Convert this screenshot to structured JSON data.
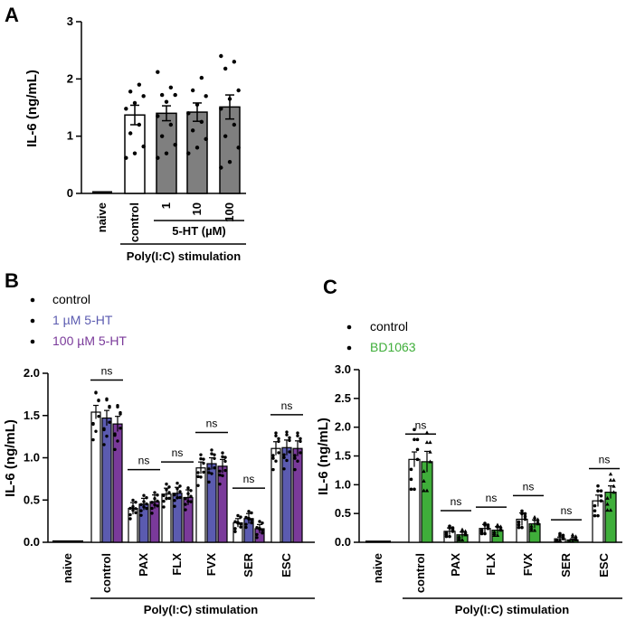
{
  "colors": {
    "control": "#ffffff",
    "dose1": "#5b5bb0",
    "dose100": "#7a3a9a",
    "bd1063": "#3fae3a",
    "panelA_treated": "#7f7f7f",
    "axis": "#000000"
  },
  "chart_data": [
    {
      "panel": "A",
      "type": "bar",
      "ylabel": "IL-6 (ng/mL)",
      "ylim": [
        0,
        3
      ],
      "yticks": [
        0,
        1,
        2,
        3
      ],
      "categories": [
        "naive",
        "control",
        "1",
        "10",
        "100"
      ],
      "values": [
        0.02,
        1.37,
        1.4,
        1.42,
        1.51
      ],
      "errors": [
        0.0,
        0.17,
        0.13,
        0.16,
        0.21
      ],
      "fills": [
        "white",
        "white",
        "gray",
        "gray",
        "gray"
      ],
      "points": [
        [
          0.02
        ],
        [
          0.62,
          0.7,
          0.82,
          1.05,
          1.2,
          1.48,
          1.58,
          1.7,
          1.78,
          1.9
        ],
        [
          0.62,
          0.7,
          0.85,
          1.0,
          1.2,
          1.35,
          1.6,
          1.72,
          1.72,
          1.85,
          2.12
        ],
        [
          0.7,
          0.8,
          0.95,
          1.1,
          1.25,
          1.4,
          1.55,
          1.7,
          1.8,
          2.02
        ],
        [
          0.45,
          0.55,
          0.8,
          1.0,
          1.2,
          1.48,
          1.65,
          1.8,
          2.18,
          2.3,
          2.4
        ]
      ],
      "group_label": "5-HT (µM)",
      "stim_label": "Poly(I:C) stimulation"
    },
    {
      "panel": "B",
      "type": "bar",
      "ylabel": "IL-6 (ng/mL)",
      "ylim": [
        0,
        2.0
      ],
      "yticks": [
        "0.0",
        "0.5",
        "1.0",
        "1.5",
        "2.0"
      ],
      "categories": [
        "naive",
        "control",
        "PAX",
        "FLX",
        "FVX",
        "SER",
        "ESC"
      ],
      "legend": [
        "control",
        "1 µM 5-HT",
        "100 µM 5-HT"
      ],
      "series": [
        {
          "name": "control",
          "values": [
            0.01,
            1.54,
            0.4,
            0.57,
            0.88,
            0.23,
            1.11
          ],
          "errors": [
            0,
            0.08,
            0.07,
            0.07,
            0.07,
            0.05,
            0.08
          ]
        },
        {
          "name": "1 µM 5-HT",
          "values": [
            0.01,
            1.47,
            0.45,
            0.58,
            0.93,
            0.28,
            1.12
          ],
          "errors": [
            0,
            0.09,
            0.07,
            0.07,
            0.07,
            0.06,
            0.09
          ]
        },
        {
          "name": "100 µM 5-HT",
          "values": [
            0.01,
            1.4,
            0.48,
            0.53,
            0.9,
            0.16,
            1.11
          ],
          "errors": [
            0,
            0.09,
            0.08,
            0.09,
            0.08,
            0.05,
            0.09
          ]
        }
      ],
      "significance": [
        "",
        "ns",
        "ns",
        "ns",
        "ns",
        "ns",
        "ns"
      ],
      "stim_label": "Poly(I:C) stimulation"
    },
    {
      "panel": "C",
      "type": "bar",
      "ylabel": "IL-6 (ng/mL)",
      "ylim": [
        0,
        3.0
      ],
      "yticks": [
        "0.0",
        "0.5",
        "1.0",
        "1.5",
        "2.0",
        "2.5",
        "3.0"
      ],
      "categories": [
        "naive",
        "control",
        "PAX",
        "FLX",
        "FVX",
        "SER",
        "ESC"
      ],
      "legend": [
        "control",
        "BD1063"
      ],
      "series": [
        {
          "name": "control",
          "values": [
            0.01,
            1.44,
            0.19,
            0.24,
            0.4,
            0.06,
            0.72
          ],
          "errors": [
            0,
            0.13,
            0.06,
            0.07,
            0.11,
            0.03,
            0.1
          ]
        },
        {
          "name": "BD1063",
          "values": [
            0.01,
            1.4,
            0.13,
            0.21,
            0.32,
            0.04,
            0.87
          ],
          "errors": [
            0,
            0.18,
            0.05,
            0.06,
            0.07,
            0.02,
            0.11
          ]
        }
      ],
      "significance": [
        "",
        "ns",
        "ns",
        "ns",
        "ns",
        "ns",
        "ns"
      ],
      "stim_label": "Poly(I:C) stimulation"
    }
  ]
}
